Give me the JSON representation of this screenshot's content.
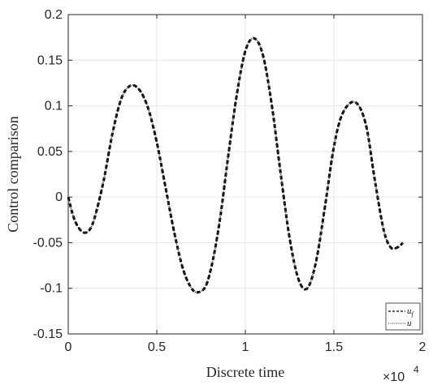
{
  "chart_data": {
    "type": "line",
    "title": "",
    "xlabel": "Discrete time",
    "ylabel": "Control comparison",
    "x_exponent_label": "×10",
    "x_exponent_power": "4",
    "x_scale": 10000,
    "xlim": [
      0,
      2
    ],
    "ylim": [
      -0.15,
      0.2
    ],
    "xticks": [
      "0",
      "0.5",
      "1",
      "1.5",
      "2"
    ],
    "yticks": [
      "-0.15",
      "-0.1",
      "-0.05",
      "0",
      "0.05",
      "0.1",
      "0.15",
      "0.2"
    ],
    "grid": true,
    "legend_position": "bottom-right",
    "series": [
      {
        "name": "u_f",
        "label": "u",
        "subscript": "f",
        "style": "dashed",
        "color": "#000000",
        "x": [
          0,
          0.03,
          0.06,
          0.09,
          0.12,
          0.15,
          0.2,
          0.25,
          0.3,
          0.35,
          0.4,
          0.45,
          0.5,
          0.55,
          0.6,
          0.65,
          0.7,
          0.74,
          0.78,
          0.82,
          0.86,
          0.9,
          0.95,
          1.0,
          1.05,
          1.1,
          1.15,
          1.2,
          1.25,
          1.3,
          1.35,
          1.4,
          1.45,
          1.5,
          1.55,
          1.62,
          1.68,
          1.73,
          1.78,
          1.82,
          1.86,
          1.89
        ],
        "y": [
          0,
          -0.022,
          -0.034,
          -0.039,
          -0.036,
          -0.022,
          0.018,
          0.07,
          0.108,
          0.122,
          0.118,
          0.098,
          0.06,
          0.01,
          -0.04,
          -0.08,
          -0.101,
          -0.104,
          -0.096,
          -0.066,
          -0.02,
          0.04,
          0.11,
          0.16,
          0.174,
          0.155,
          0.1,
          0.025,
          -0.045,
          -0.09,
          -0.1,
          -0.07,
          -0.01,
          0.055,
          0.092,
          0.104,
          0.08,
          0.02,
          -0.035,
          -0.055,
          -0.055,
          -0.05
        ]
      },
      {
        "name": "u",
        "label": "u",
        "subscript": "",
        "style": "dotted",
        "color": "#444444",
        "x": [
          0,
          0.03,
          0.06,
          0.09,
          0.12,
          0.15,
          0.2,
          0.25,
          0.3,
          0.35,
          0.4,
          0.45,
          0.5,
          0.55,
          0.6,
          0.65,
          0.7,
          0.74,
          0.78,
          0.82,
          0.86,
          0.9,
          0.95,
          1.0,
          1.05,
          1.1,
          1.15,
          1.2,
          1.25,
          1.3,
          1.35,
          1.4,
          1.45,
          1.5,
          1.55,
          1.62,
          1.68,
          1.73,
          1.78,
          1.82,
          1.86,
          1.89
        ],
        "y": [
          0,
          -0.022,
          -0.034,
          -0.039,
          -0.036,
          -0.022,
          0.018,
          0.07,
          0.108,
          0.122,
          0.118,
          0.098,
          0.06,
          0.01,
          -0.04,
          -0.08,
          -0.101,
          -0.104,
          -0.096,
          -0.066,
          -0.02,
          0.04,
          0.11,
          0.16,
          0.174,
          0.155,
          0.1,
          0.025,
          -0.045,
          -0.09,
          -0.1,
          -0.07,
          -0.01,
          0.055,
          0.092,
          0.104,
          0.08,
          0.02,
          -0.035,
          -0.055,
          -0.055,
          -0.05
        ]
      }
    ]
  }
}
